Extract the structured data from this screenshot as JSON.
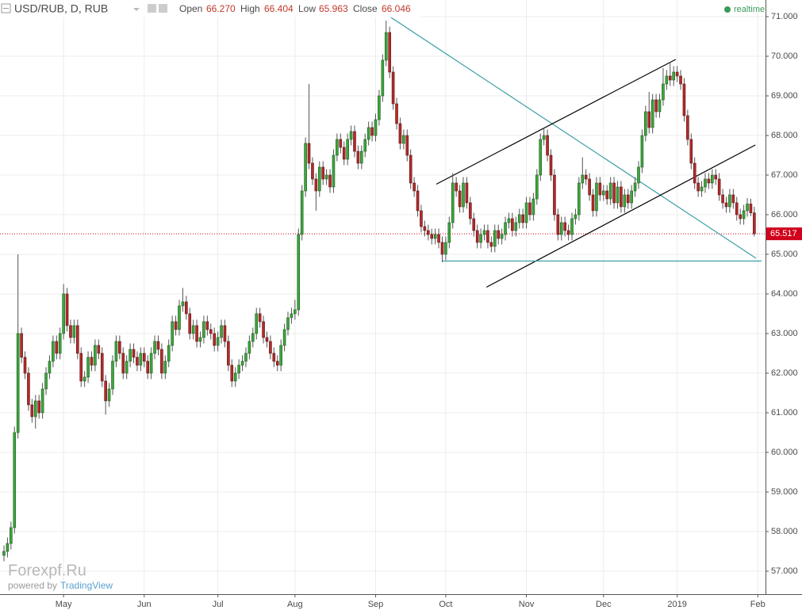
{
  "chart_data": {
    "type": "candlestick",
    "header": {
      "symbol": "USD/RUB, D, RUB",
      "open_label": "Open",
      "open": "66.270",
      "high_label": "High",
      "high": "66.404",
      "low_label": "Low",
      "low": "65.963",
      "close_label": "Close",
      "close": "66.046",
      "status": "realtime"
    },
    "watermark": "Forexpf.Ru",
    "powered_by": "powered by",
    "provider": "TradingView",
    "up_color": "#3ea53e",
    "down_color": "#b52a2a",
    "xlim": [
      -1.13,
      217.2
    ],
    "ylim": [
      56.42,
      71.42
    ],
    "xticks": [
      {
        "value": 17,
        "label": "May"
      },
      {
        "value": 40,
        "label": "Jun"
      },
      {
        "value": 61,
        "label": "Jul"
      },
      {
        "value": 83,
        "label": "Aug"
      },
      {
        "value": 106,
        "label": "Sep"
      },
      {
        "value": 126,
        "label": "Oct"
      },
      {
        "value": 149,
        "label": "Nov"
      },
      {
        "value": 171,
        "label": "Dec"
      },
      {
        "value": 192,
        "label": "2019"
      },
      {
        "value": 215,
        "label": "Feb"
      }
    ],
    "yticks": [
      {
        "value": 57,
        "label": "57.000"
      },
      {
        "value": 58,
        "label": "58.000"
      },
      {
        "value": 59,
        "label": "59.000"
      },
      {
        "value": 60,
        "label": "60.000"
      },
      {
        "value": 61,
        "label": "61.000"
      },
      {
        "value": 62,
        "label": "62.000"
      },
      {
        "value": 63,
        "label": "63.000"
      },
      {
        "value": 64,
        "label": "64.000"
      },
      {
        "value": 65,
        "label": "65.000"
      },
      {
        "value": 66,
        "label": "66.000"
      },
      {
        "value": 67,
        "label": "67.000"
      },
      {
        "value": 68,
        "label": "68.000"
      },
      {
        "value": 69,
        "label": "69.000"
      },
      {
        "value": 70,
        "label": "70.000"
      },
      {
        "value": 71,
        "label": "71.000"
      }
    ],
    "grid": true,
    "last_price": 65.517,
    "last_price_color": "#d0021b",
    "trendlines": [
      {
        "color": "#3a9fa5",
        "x": [
          109.7,
          214.5
        ],
        "y": [
          71.02,
          64.9
        ]
      },
      {
        "color": "#000000",
        "x": [
          123.3,
          191.6
        ],
        "y": [
          66.77,
          69.92
        ]
      },
      {
        "color": "#000000",
        "x": [
          137.6,
          214.3
        ],
        "y": [
          64.17,
          67.76
        ]
      },
      {
        "color": "#3a9fa5",
        "x": [
          125.1,
          216.1
        ],
        "y": [
          64.83,
          64.83
        ]
      }
    ],
    "ohlc": [
      [
        57.4,
        57.65,
        57.25,
        57.5
      ],
      [
        57.5,
        57.85,
        57.35,
        57.7
      ],
      [
        57.7,
        58.25,
        57.55,
        58.1
      ],
      [
        58.1,
        60.65,
        57.95,
        60.5
      ],
      [
        60.5,
        65.0,
        60.35,
        63.0
      ],
      [
        63.0,
        63.15,
        62.25,
        62.4
      ],
      [
        62.4,
        62.55,
        61.85,
        62.0
      ],
      [
        62.0,
        62.15,
        61.05,
        61.2
      ],
      [
        61.2,
        61.35,
        60.75,
        60.9
      ],
      [
        60.9,
        61.45,
        60.6,
        61.3
      ],
      [
        61.3,
        61.45,
        60.85,
        61.0
      ],
      [
        61.0,
        61.75,
        60.85,
        61.6
      ],
      [
        61.6,
        62.15,
        61.45,
        62.0
      ],
      [
        62.0,
        62.45,
        61.85,
        62.3
      ],
      [
        62.3,
        62.95,
        62.15,
        62.8
      ],
      [
        62.8,
        62.95,
        62.35,
        62.5
      ],
      [
        62.5,
        63.15,
        62.35,
        63.0
      ],
      [
        63.0,
        64.25,
        62.85,
        64.0
      ],
      [
        64.0,
        64.15,
        63.05,
        63.2
      ],
      [
        63.2,
        63.35,
        62.75,
        62.9
      ],
      [
        62.9,
        63.35,
        62.75,
        63.2
      ],
      [
        63.2,
        63.35,
        62.35,
        62.5
      ],
      [
        62.5,
        62.65,
        61.65,
        61.8
      ],
      [
        61.8,
        62.05,
        61.65,
        61.9
      ],
      [
        61.9,
        62.55,
        61.75,
        62.4
      ],
      [
        62.4,
        62.55,
        62.05,
        62.2
      ],
      [
        62.2,
        62.85,
        62.05,
        62.7
      ],
      [
        62.7,
        62.85,
        62.35,
        62.5
      ],
      [
        62.5,
        62.65,
        61.65,
        61.8
      ],
      [
        61.8,
        61.95,
        60.95,
        61.3
      ],
      [
        61.3,
        61.75,
        61.15,
        61.6
      ],
      [
        61.6,
        62.45,
        61.45,
        62.3
      ],
      [
        62.3,
        62.95,
        62.15,
        62.8
      ],
      [
        62.8,
        62.95,
        62.35,
        62.5
      ],
      [
        62.5,
        62.65,
        61.85,
        62.0
      ],
      [
        62.0,
        62.45,
        61.85,
        62.3
      ],
      [
        62.3,
        62.75,
        62.15,
        62.6
      ],
      [
        62.6,
        62.75,
        62.25,
        62.4
      ],
      [
        62.4,
        62.55,
        62.05,
        62.2
      ],
      [
        62.2,
        62.65,
        62.05,
        62.5
      ],
      [
        62.5,
        62.65,
        62.15,
        62.3
      ],
      [
        62.3,
        62.45,
        61.85,
        62.0
      ],
      [
        62.0,
        62.65,
        61.85,
        62.5
      ],
      [
        62.5,
        62.95,
        62.35,
        62.8
      ],
      [
        62.8,
        62.95,
        62.45,
        62.6
      ],
      [
        62.6,
        62.75,
        61.85,
        62.0
      ],
      [
        62.0,
        62.45,
        61.85,
        62.3
      ],
      [
        62.3,
        62.85,
        62.15,
        62.7
      ],
      [
        62.7,
        63.45,
        62.55,
        63.3
      ],
      [
        63.3,
        63.45,
        62.95,
        63.1
      ],
      [
        63.1,
        63.85,
        62.95,
        63.7
      ],
      [
        63.7,
        64.15,
        63.55,
        63.8
      ],
      [
        63.8,
        63.95,
        63.35,
        63.5
      ],
      [
        63.5,
        63.65,
        62.85,
        63.0
      ],
      [
        63.0,
        63.35,
        62.85,
        63.2
      ],
      [
        63.2,
        63.35,
        62.65,
        62.8
      ],
      [
        62.8,
        63.05,
        62.65,
        62.9
      ],
      [
        62.9,
        63.45,
        62.75,
        63.3
      ],
      [
        63.3,
        63.45,
        62.95,
        63.1
      ],
      [
        63.1,
        63.25,
        62.85,
        63.0
      ],
      [
        63.0,
        63.15,
        62.55,
        62.7
      ],
      [
        62.7,
        63.05,
        62.55,
        62.9
      ],
      [
        62.9,
        63.35,
        62.75,
        63.2
      ],
      [
        63.2,
        63.35,
        62.65,
        62.8
      ],
      [
        62.8,
        62.95,
        62.05,
        62.2
      ],
      [
        62.2,
        62.35,
        61.65,
        61.8
      ],
      [
        61.8,
        62.15,
        61.65,
        62.0
      ],
      [
        62.0,
        62.35,
        61.85,
        62.2
      ],
      [
        62.2,
        62.45,
        62.05,
        62.3
      ],
      [
        62.3,
        62.65,
        62.15,
        62.5
      ],
      [
        62.5,
        62.95,
        62.35,
        62.8
      ],
      [
        62.8,
        63.15,
        62.65,
        63.0
      ],
      [
        63.0,
        63.65,
        62.85,
        63.5
      ],
      [
        63.5,
        63.65,
        63.15,
        63.3
      ],
      [
        63.3,
        63.45,
        62.75,
        62.9
      ],
      [
        62.9,
        63.05,
        62.65,
        62.8
      ],
      [
        62.8,
        62.95,
        62.35,
        62.5
      ],
      [
        62.5,
        62.65,
        62.15,
        62.3
      ],
      [
        62.3,
        62.45,
        62.05,
        62.2
      ],
      [
        62.2,
        62.85,
        62.05,
        62.7
      ],
      [
        62.7,
        63.25,
        62.55,
        63.1
      ],
      [
        63.1,
        63.55,
        62.95,
        63.4
      ],
      [
        63.4,
        63.65,
        63.25,
        63.5
      ],
      [
        63.5,
        63.85,
        63.35,
        63.6
      ],
      [
        63.6,
        65.65,
        63.45,
        65.5
      ],
      [
        65.5,
        66.75,
        65.35,
        66.6
      ],
      [
        66.6,
        67.95,
        66.45,
        67.8
      ],
      [
        67.8,
        69.3,
        67.15,
        67.3
      ],
      [
        67.3,
        67.45,
        66.75,
        66.9
      ],
      [
        66.9,
        67.05,
        66.1,
        66.6
      ],
      [
        66.6,
        67.35,
        66.45,
        67.2
      ],
      [
        67.2,
        67.35,
        66.75,
        66.9
      ],
      [
        66.9,
        67.15,
        66.75,
        67.0
      ],
      [
        67.0,
        67.15,
        66.55,
        66.7
      ],
      [
        66.7,
        67.65,
        66.55,
        67.5
      ],
      [
        67.5,
        68.05,
        67.35,
        67.9
      ],
      [
        67.9,
        68.05,
        67.55,
        67.7
      ],
      [
        67.7,
        67.85,
        67.25,
        67.4
      ],
      [
        67.4,
        68.05,
        67.25,
        67.9
      ],
      [
        67.9,
        68.25,
        67.75,
        68.1
      ],
      [
        68.1,
        68.25,
        67.45,
        67.6
      ],
      [
        67.6,
        67.75,
        67.15,
        67.3
      ],
      [
        67.3,
        67.75,
        67.15,
        67.6
      ],
      [
        67.6,
        68.05,
        67.45,
        67.9
      ],
      [
        67.9,
        68.35,
        67.75,
        68.2
      ],
      [
        68.2,
        68.35,
        67.85,
        68.0
      ],
      [
        68.0,
        68.55,
        67.85,
        68.4
      ],
      [
        68.4,
        69.15,
        68.25,
        69.0
      ],
      [
        69.0,
        70.05,
        68.85,
        69.9
      ],
      [
        69.9,
        70.9,
        69.75,
        70.6
      ],
      [
        70.6,
        70.75,
        69.45,
        69.6
      ],
      [
        69.6,
        69.75,
        68.65,
        68.8
      ],
      [
        68.8,
        68.95,
        68.15,
        68.3
      ],
      [
        68.3,
        68.45,
        67.65,
        67.8
      ],
      [
        67.8,
        68.15,
        67.65,
        68.0
      ],
      [
        68.0,
        68.15,
        67.35,
        67.5
      ],
      [
        67.5,
        67.65,
        66.65,
        66.8
      ],
      [
        66.8,
        66.95,
        66.45,
        66.6
      ],
      [
        66.6,
        66.75,
        65.95,
        66.1
      ],
      [
        66.1,
        66.25,
        65.55,
        65.7
      ],
      [
        65.7,
        65.85,
        65.45,
        65.6
      ],
      [
        65.6,
        65.75,
        65.35,
        65.5
      ],
      [
        65.5,
        65.65,
        65.25,
        65.4
      ],
      [
        65.4,
        65.65,
        65.25,
        65.5
      ],
      [
        65.5,
        65.65,
        65.15,
        65.3
      ],
      [
        65.3,
        65.45,
        64.8,
        65.0
      ],
      [
        65.0,
        65.45,
        64.85,
        65.3
      ],
      [
        65.3,
        65.95,
        65.15,
        65.8
      ],
      [
        65.8,
        67.05,
        65.65,
        66.8
      ],
      [
        66.8,
        66.95,
        66.45,
        66.6
      ],
      [
        66.6,
        66.75,
        66.05,
        66.2
      ],
      [
        66.2,
        66.95,
        66.05,
        66.8
      ],
      [
        66.8,
        66.95,
        66.15,
        66.3
      ],
      [
        66.3,
        66.45,
        65.75,
        65.9
      ],
      [
        65.9,
        66.05,
        65.45,
        65.6
      ],
      [
        65.6,
        65.75,
        65.15,
        65.3
      ],
      [
        65.3,
        65.65,
        65.15,
        65.5
      ],
      [
        65.5,
        65.75,
        65.35,
        65.6
      ],
      [
        65.6,
        65.75,
        65.15,
        65.3
      ],
      [
        65.3,
        65.45,
        65.05,
        65.2
      ],
      [
        65.2,
        65.75,
        65.05,
        65.6
      ],
      [
        65.6,
        65.75,
        65.25,
        65.4
      ],
      [
        65.4,
        65.65,
        65.25,
        65.5
      ],
      [
        65.5,
        65.95,
        65.35,
        65.8
      ],
      [
        65.8,
        66.05,
        65.65,
        65.9
      ],
      [
        65.9,
        66.05,
        65.45,
        65.6
      ],
      [
        65.6,
        65.95,
        65.45,
        65.8
      ],
      [
        65.8,
        66.15,
        65.65,
        66.0
      ],
      [
        66.0,
        66.15,
        65.65,
        65.8
      ],
      [
        65.8,
        66.45,
        65.65,
        66.3
      ],
      [
        66.3,
        66.45,
        65.85,
        66.0
      ],
      [
        66.0,
        66.55,
        65.85,
        66.4
      ],
      [
        66.4,
        67.15,
        66.25,
        67.0
      ],
      [
        67.0,
        68.05,
        66.85,
        67.9
      ],
      [
        67.9,
        68.2,
        67.75,
        68.0
      ],
      [
        68.0,
        68.15,
        67.35,
        67.5
      ],
      [
        67.5,
        67.65,
        66.85,
        67.0
      ],
      [
        67.0,
        67.15,
        65.85,
        66.0
      ],
      [
        66.0,
        66.15,
        65.35,
        65.5
      ],
      [
        65.5,
        65.95,
        65.35,
        65.8
      ],
      [
        65.8,
        65.95,
        65.45,
        65.6
      ],
      [
        65.6,
        65.75,
        65.35,
        65.5
      ],
      [
        65.5,
        66.05,
        65.35,
        65.9
      ],
      [
        65.9,
        66.15,
        65.75,
        66.0
      ],
      [
        66.0,
        66.95,
        65.85,
        66.8
      ],
      [
        66.8,
        67.45,
        66.65,
        67.0
      ],
      [
        67.0,
        67.15,
        66.75,
        66.9
      ],
      [
        66.9,
        67.05,
        66.35,
        66.5
      ],
      [
        66.5,
        66.65,
        65.95,
        66.1
      ],
      [
        66.1,
        66.95,
        65.95,
        66.8
      ],
      [
        66.8,
        66.95,
        66.35,
        66.5
      ],
      [
        66.5,
        66.75,
        66.35,
        66.6
      ],
      [
        66.6,
        66.75,
        66.25,
        66.4
      ],
      [
        66.4,
        66.95,
        66.25,
        66.8
      ],
      [
        66.8,
        66.95,
        66.15,
        66.3
      ],
      [
        66.3,
        66.85,
        66.15,
        66.7
      ],
      [
        66.7,
        66.85,
        66.05,
        66.2
      ],
      [
        66.2,
        66.65,
        66.05,
        66.5
      ],
      [
        66.5,
        66.65,
        66.15,
        66.3
      ],
      [
        66.3,
        66.75,
        66.15,
        66.6
      ],
      [
        66.6,
        66.95,
        66.45,
        66.8
      ],
      [
        66.8,
        67.35,
        66.65,
        67.2
      ],
      [
        67.2,
        68.15,
        67.05,
        68.0
      ],
      [
        68.0,
        68.75,
        67.85,
        68.6
      ],
      [
        68.6,
        69.1,
        68.05,
        68.2
      ],
      [
        68.2,
        69.05,
        68.05,
        68.9
      ],
      [
        68.9,
        69.05,
        68.45,
        68.6
      ],
      [
        68.6,
        69.05,
        68.45,
        68.9
      ],
      [
        68.9,
        69.7,
        68.75,
        69.3
      ],
      [
        69.3,
        69.65,
        69.15,
        69.5
      ],
      [
        69.5,
        69.85,
        69.25,
        69.4
      ],
      [
        69.4,
        69.75,
        69.25,
        69.6
      ],
      [
        69.6,
        69.75,
        69.35,
        69.5
      ],
      [
        69.5,
        69.65,
        69.15,
        69.3
      ],
      [
        69.3,
        69.45,
        68.35,
        68.5
      ],
      [
        68.5,
        68.65,
        67.75,
        67.9
      ],
      [
        67.9,
        68.05,
        67.15,
        67.3
      ],
      [
        67.3,
        67.45,
        66.65,
        66.8
      ],
      [
        66.8,
        66.95,
        66.45,
        66.6
      ],
      [
        66.6,
        66.85,
        66.45,
        66.7
      ],
      [
        66.7,
        67.05,
        66.55,
        66.9
      ],
      [
        66.9,
        67.05,
        66.65,
        66.8
      ],
      [
        66.8,
        67.15,
        66.65,
        67.0
      ],
      [
        67.0,
        67.15,
        66.75,
        66.9
      ],
      [
        66.9,
        67.05,
        66.35,
        66.5
      ],
      [
        66.5,
        66.65,
        66.15,
        66.3
      ],
      [
        66.3,
        66.45,
        66.05,
        66.2
      ],
      [
        66.2,
        66.65,
        66.05,
        66.5
      ],
      [
        66.5,
        66.65,
        66.15,
        66.3
      ],
      [
        66.3,
        66.45,
        65.85,
        66.0
      ],
      [
        66.0,
        66.15,
        65.75,
        65.9
      ],
      [
        65.9,
        66.25,
        65.75,
        66.1
      ],
      [
        66.1,
        66.42,
        65.95,
        66.27
      ],
      [
        66.27,
        66.404,
        65.963,
        66.046
      ],
      [
        66.046,
        66.2,
        65.45,
        65.517
      ]
    ]
  }
}
